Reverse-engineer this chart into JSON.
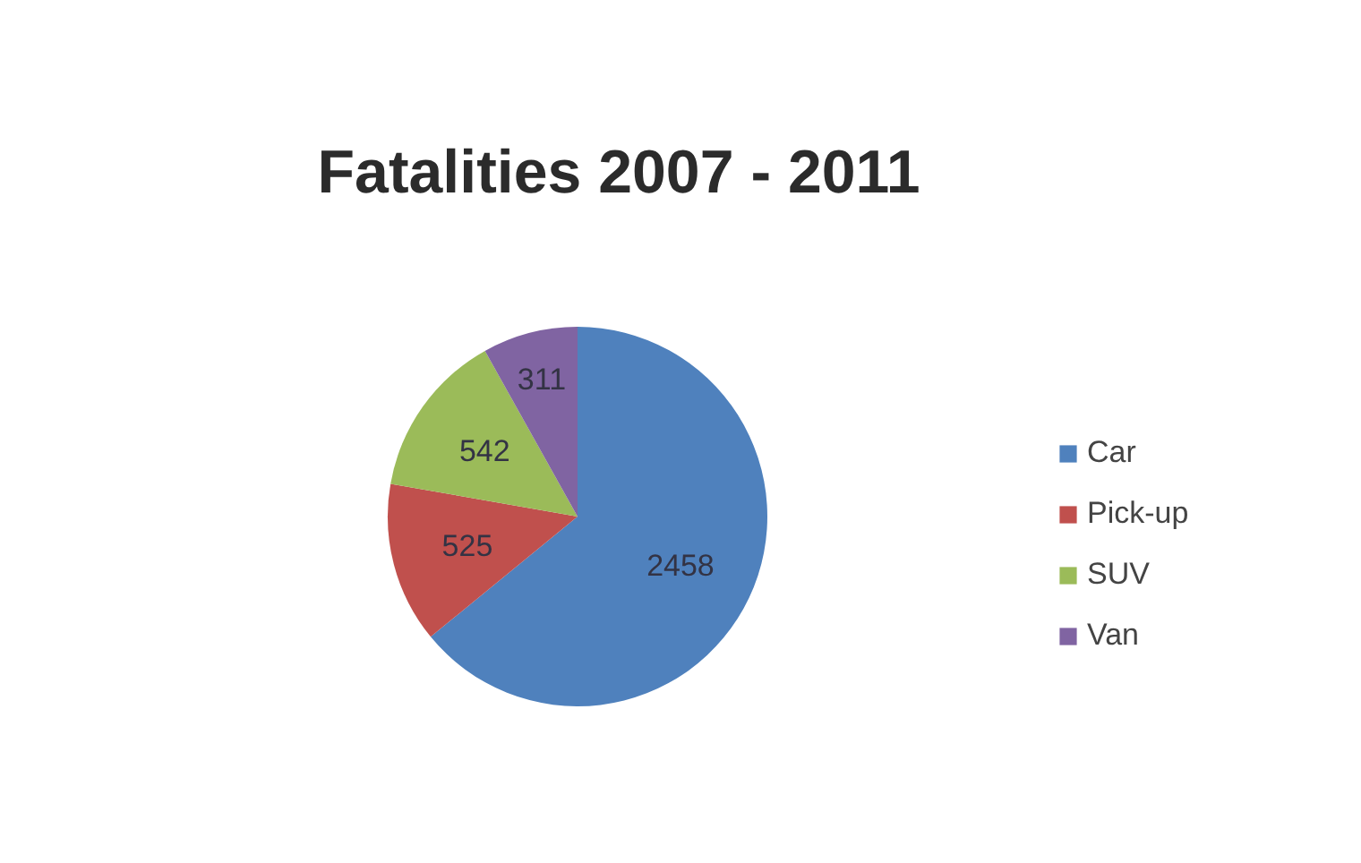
{
  "chart_data": {
    "type": "pie",
    "title": "Fatalities 2007 - 2011",
    "categories": [
      "Car",
      "Pick-up",
      "SUV",
      "Van"
    ],
    "values": [
      2458,
      525,
      542,
      311
    ],
    "colors": [
      "#4f81bd",
      "#c0504d",
      "#9bbb59",
      "#8064a2"
    ],
    "data_labels": true,
    "legend": "right"
  }
}
